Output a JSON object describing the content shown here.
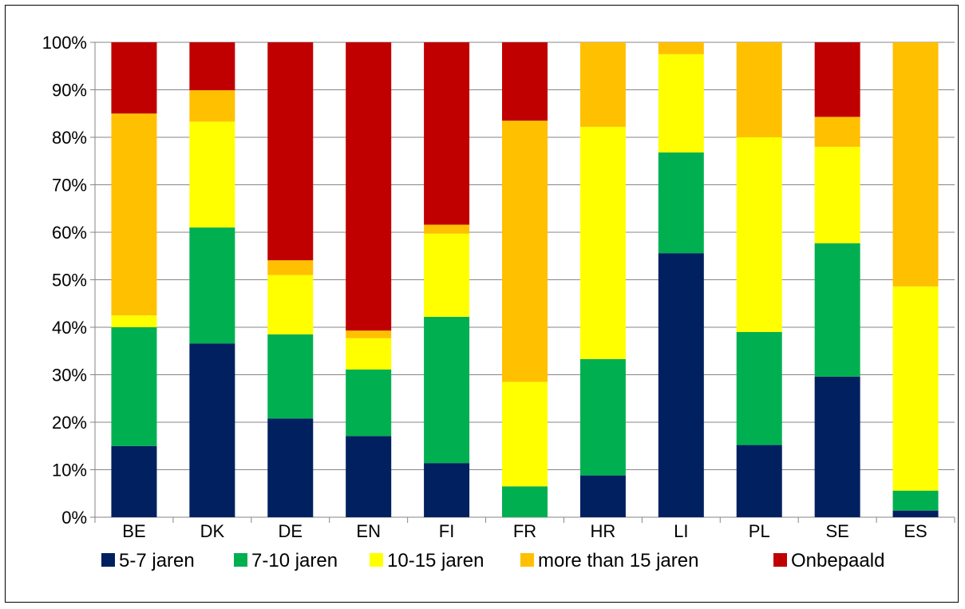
{
  "chart_data": {
    "type": "bar",
    "stacked": true,
    "categories": [
      "BE",
      "DK",
      "DE",
      "EN",
      "FI",
      "FR",
      "HR",
      "LI",
      "PL",
      "SE",
      "ES"
    ],
    "series": [
      {
        "name": "5-7 jaren",
        "color": "#002060",
        "values": [
          15,
          36.6,
          20.8,
          17.1,
          11.4,
          0,
          8.8,
          55.6,
          15.2,
          29.6,
          1.4
        ]
      },
      {
        "name": "7-10 jaren",
        "color": "#00B050",
        "values": [
          25,
          24.4,
          17.7,
          14.0,
          30.8,
          6.5,
          24.5,
          21.2,
          23.8,
          28.1,
          4.2
        ]
      },
      {
        "name": "10-15 jaren",
        "color": "#FFFF00",
        "values": [
          2.5,
          22.3,
          12.5,
          6.6,
          17.5,
          22.0,
          48.9,
          20.7,
          41.0,
          20.3,
          43.0
        ]
      },
      {
        "name": "more than 15 jaren",
        "color": "#FFC000",
        "values": [
          42.5,
          6.6,
          3.1,
          1.6,
          1.9,
          55.0,
          17.8,
          2.5,
          20.0,
          6.3,
          51.4
        ]
      },
      {
        "name": "Onbepaald",
        "color": "#C00000",
        "values": [
          15,
          10.1,
          45.9,
          60.7,
          38.4,
          16.5,
          0,
          0,
          0,
          15.7,
          0
        ]
      }
    ],
    "y_ticks": [
      "0%",
      "10%",
      "20%",
      "30%",
      "40%",
      "50%",
      "60%",
      "70%",
      "80%",
      "90%",
      "100%"
    ],
    "ylim": [
      0,
      100
    ],
    "grid": true,
    "legend": "bottom"
  }
}
